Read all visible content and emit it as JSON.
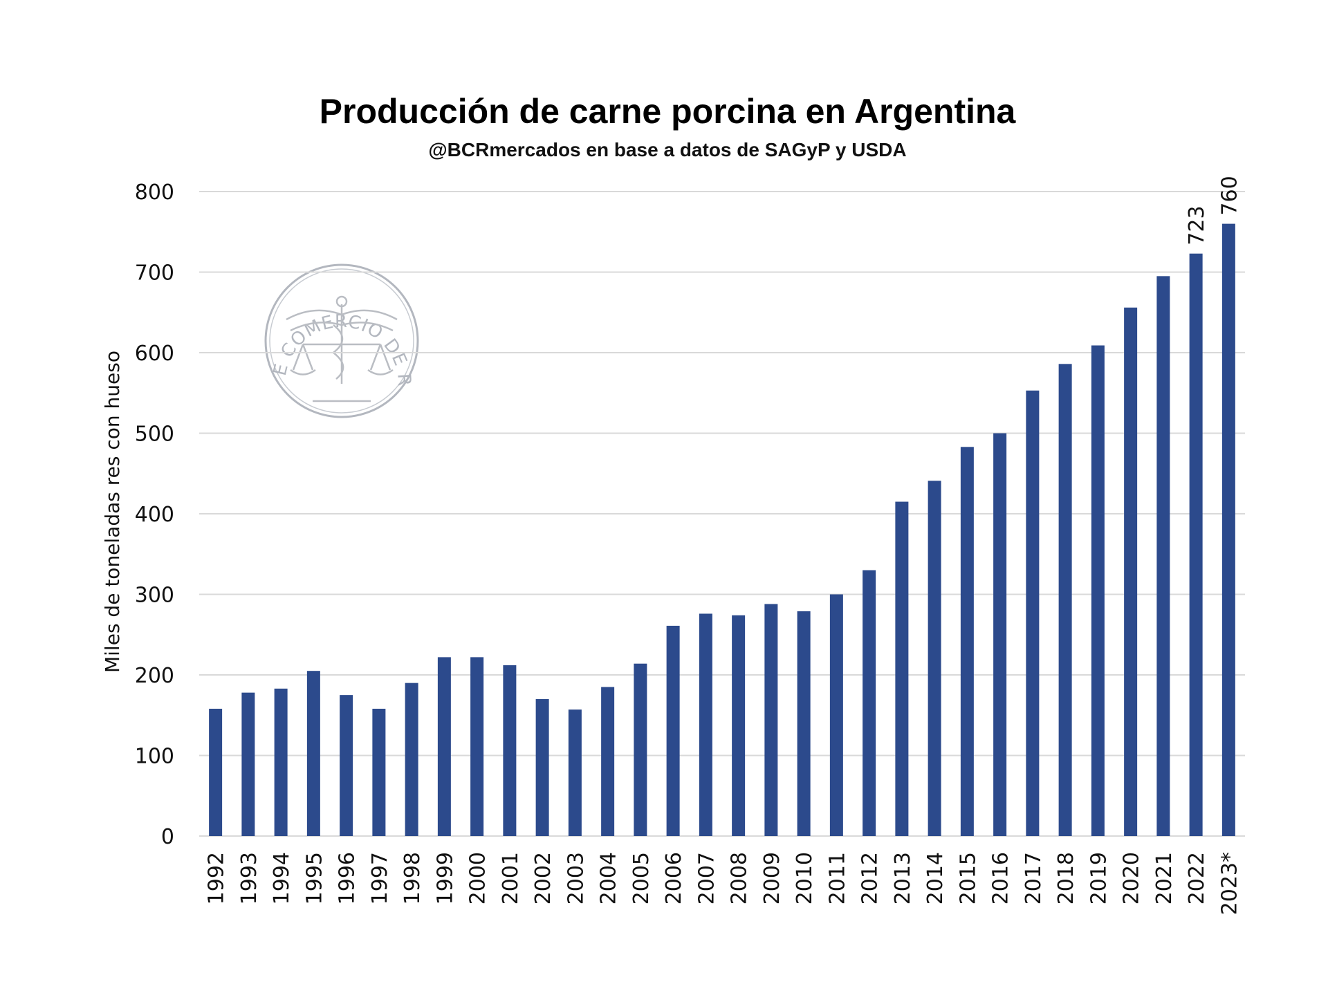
{
  "chart_data": {
    "type": "bar",
    "title": "Producción de carne porcina en Argentina",
    "subtitle": "@BCRmercados en base a datos de SAGyP y USDA",
    "ylabel": "Miles de toneladas res con hueso",
    "xlabel": "",
    "ylim": [
      0,
      800
    ],
    "yticks": [
      "0",
      "100",
      "200",
      "300",
      "400",
      "500",
      "600",
      "700",
      "800"
    ],
    "grid": true,
    "legend": "none",
    "bar_color": "#2c4a8c",
    "categories": [
      "1992",
      "1993",
      "1994",
      "1995",
      "1996",
      "1997",
      "1998",
      "1999",
      "2000",
      "2001",
      "2002",
      "2003",
      "2004",
      "2005",
      "2006",
      "2007",
      "2008",
      "2009",
      "2010",
      "2011",
      "2012",
      "2013",
      "2014",
      "2015",
      "2016",
      "2017",
      "2018",
      "2019",
      "2020",
      "2021",
      "2022",
      "2023*"
    ],
    "values": [
      158,
      178,
      183,
      205,
      175,
      158,
      190,
      222,
      222,
      212,
      170,
      157,
      185,
      214,
      261,
      276,
      274,
      288,
      279,
      300,
      330,
      415,
      441,
      483,
      500,
      553,
      586,
      609,
      656,
      695,
      723,
      760
    ],
    "data_labels": [
      {
        "category": "2022",
        "text": "723"
      },
      {
        "category": "2023*",
        "text": "760"
      }
    ]
  },
  "watermark": {
    "text": "BOLSA DE COMERCIO DE ROSARIO",
    "color": "#9aa0aa"
  }
}
